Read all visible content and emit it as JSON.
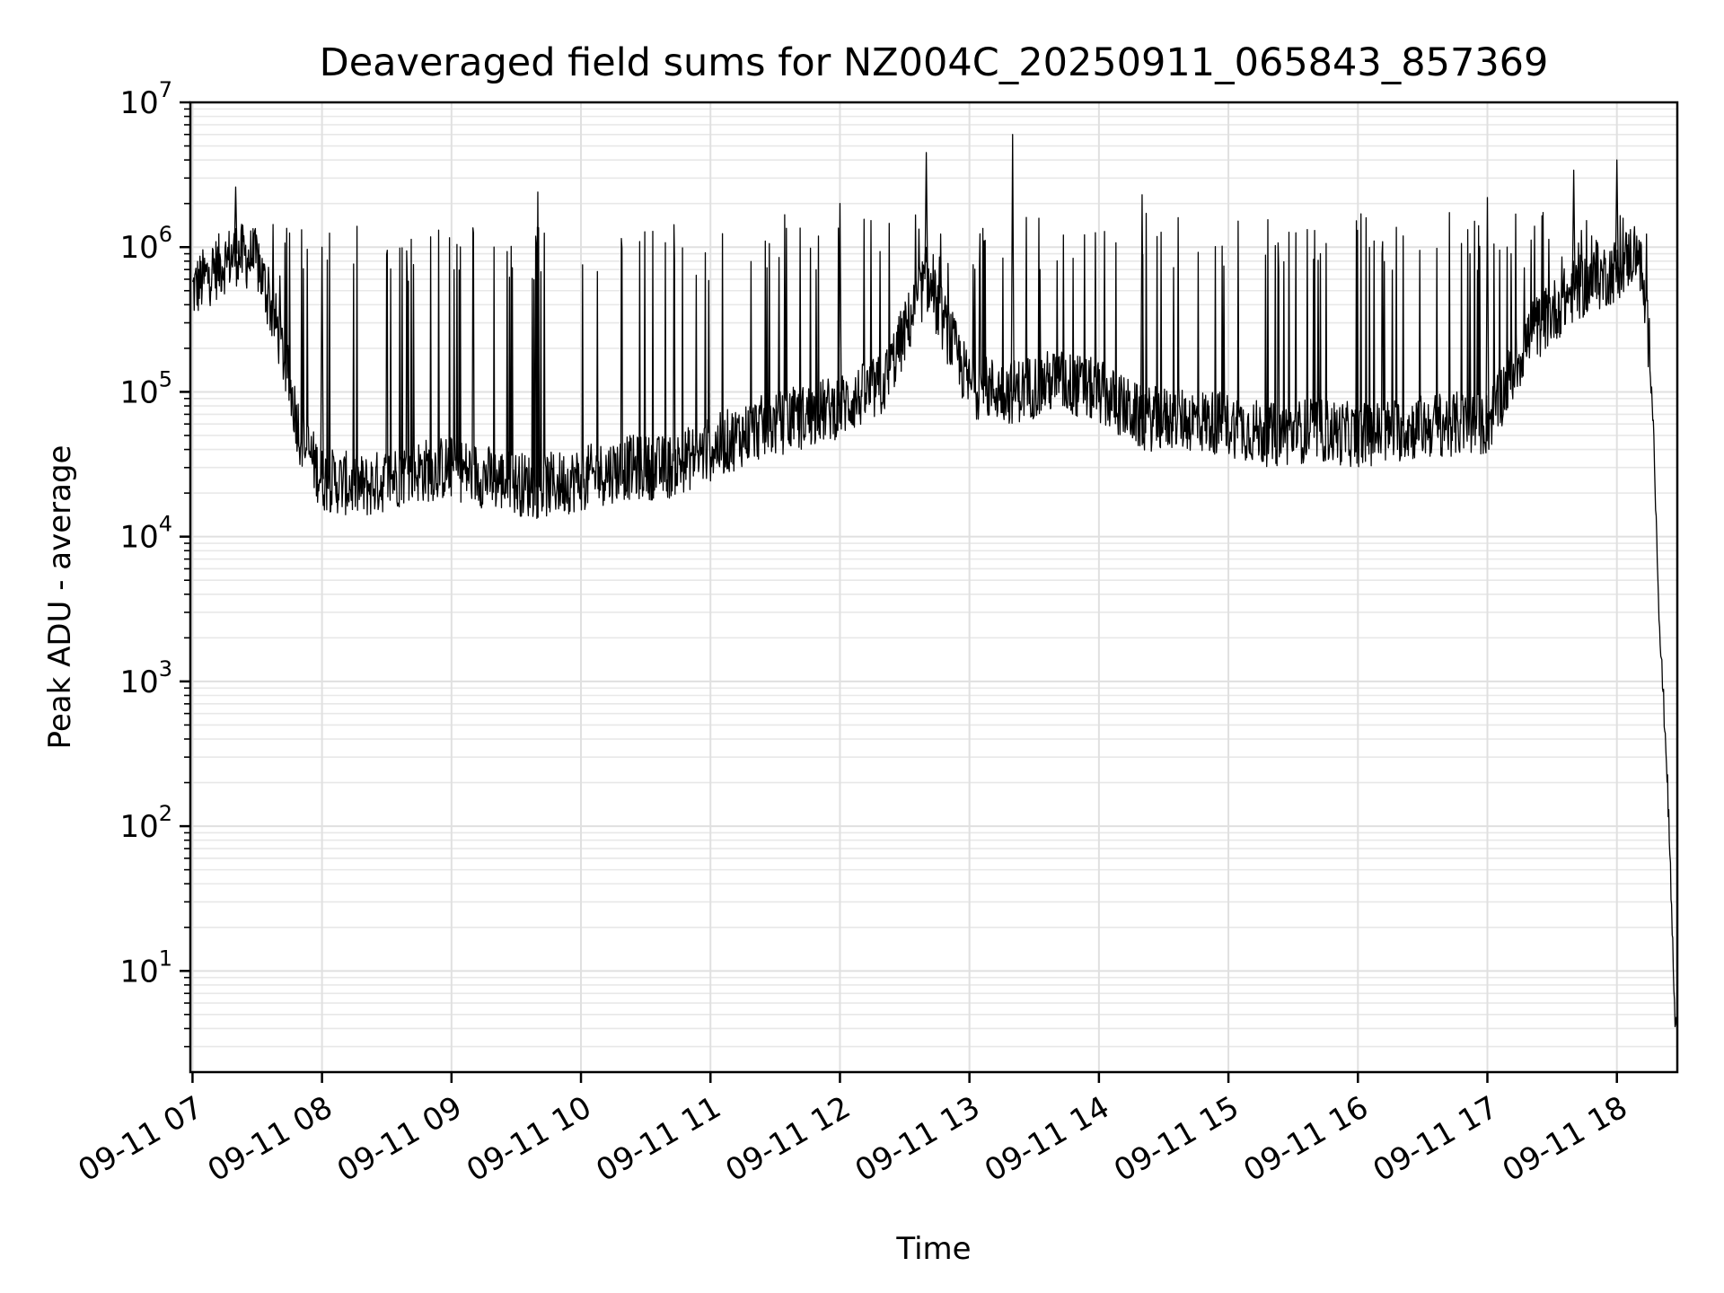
{
  "chart_data": {
    "type": "line",
    "title": "Deaveraged field sums for NZ004C_20250911_065843_857369",
    "xlabel": "Time",
    "ylabel": "Peak ADU - average",
    "yscale": "log",
    "ylim": [
      2,
      10000000
    ],
    "xlim": [
      "2025-09-11 06:59",
      "2025-09-11 18:28"
    ],
    "grid": "major and minor",
    "legend": "none",
    "line_color": "#000000",
    "x_ticks": [
      "09-11 07",
      "09-11 08",
      "09-11 09",
      "09-11 10",
      "09-11 11",
      "09-11 12",
      "09-11 13",
      "09-11 14",
      "09-11 15",
      "09-11 16",
      "09-11 17",
      "09-11 18"
    ],
    "y_ticks": [
      {
        "base": "10",
        "exp": "1",
        "value": 10
      },
      {
        "base": "10",
        "exp": "2",
        "value": 100
      },
      {
        "base": "10",
        "exp": "3",
        "value": 1000
      },
      {
        "base": "10",
        "exp": "4",
        "value": 10000
      },
      {
        "base": "10",
        "exp": "5",
        "value": 100000
      },
      {
        "base": "10",
        "exp": "6",
        "value": 1000000
      },
      {
        "base": "10",
        "exp": "7",
        "value": 10000000
      }
    ],
    "series": [
      {
        "x": [
          "2025-09-11 07:00",
          "2025-09-11 07:10",
          "2025-09-11 07:20",
          "2025-09-11 07:30",
          "2025-09-11 07:40",
          "2025-09-11 07:50",
          "2025-09-11 08:00",
          "2025-09-11 08:20",
          "2025-09-11 08:40",
          "2025-09-11 09:00",
          "2025-09-11 09:20",
          "2025-09-11 09:40",
          "2025-09-11 10:00",
          "2025-09-11 10:20",
          "2025-09-11 10:40",
          "2025-09-11 11:00",
          "2025-09-11 11:20",
          "2025-09-11 11:40",
          "2025-09-11 12:00",
          "2025-09-11 12:20",
          "2025-09-11 12:40",
          "2025-09-11 13:00",
          "2025-09-11 13:20",
          "2025-09-11 13:40",
          "2025-09-11 14:00",
          "2025-09-11 14:20",
          "2025-09-11 14:40",
          "2025-09-11 15:00",
          "2025-09-11 15:20",
          "2025-09-11 15:40",
          "2025-09-11 16:00",
          "2025-09-11 16:20",
          "2025-09-11 16:40",
          "2025-09-11 17:00",
          "2025-09-11 17:20",
          "2025-09-11 17:40",
          "2025-09-11 18:00",
          "2025-09-11 18:10",
          "2025-09-11 18:16",
          "2025-09-11 18:20",
          "2025-09-11 18:23",
          "2025-09-11 18:25",
          "2025-09-11 18:27",
          "2025-09-11 18:28"
        ],
        "values": [
          500000,
          700000,
          900000,
          800000,
          250000,
          50000,
          25000,
          22000,
          28000,
          30000,
          25000,
          22000,
          25000,
          30000,
          30000,
          40000,
          55000,
          65000,
          80000,
          110000,
          600000,
          110000,
          100000,
          120000,
          100000,
          65000,
          65000,
          60000,
          50000,
          55000,
          50000,
          55000,
          60000,
          60000,
          250000,
          500000,
          700000,
          1000000,
          150000,
          2000,
          300,
          40,
          4,
          4
        ]
      },
      {
        "name": "spikes",
        "kind": "transient peaks",
        "x": [
          "2025-09-11 07:20",
          "2025-09-11 08:00",
          "2025-09-11 09:40",
          "2025-09-11 12:00",
          "2025-09-11 12:40",
          "2025-09-11 13:20",
          "2025-09-11 14:20",
          "2025-09-11 17:00",
          "2025-09-11 17:40",
          "2025-09-11 18:00"
        ],
        "values": [
          2600000,
          1000000,
          2400000,
          2000000,
          4500000,
          6000000,
          2300000,
          2200000,
          3400000,
          4000000
        ]
      }
    ]
  }
}
